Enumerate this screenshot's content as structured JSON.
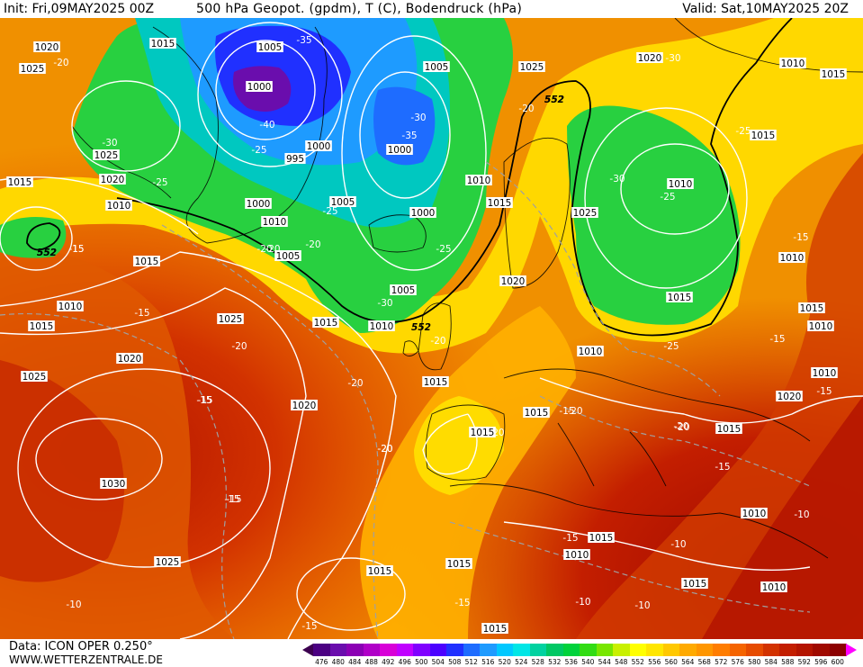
{
  "header": {
    "init": "Init: Fri,09MAY2025 00Z",
    "title": "500 hPa Geopot. (gpdm), T (C), Bodendruck (hPa)",
    "valid": "Valid: Sat,10MAY2025 20Z"
  },
  "footer": {
    "source": "Data: ICON OPER 0.250°",
    "site": "WWW.WETTERZENTRALE.DE"
  },
  "legend": {
    "values": [
      "476",
      "480",
      "484",
      "488",
      "492",
      "496",
      "500",
      "504",
      "508",
      "512",
      "516",
      "520",
      "524",
      "528",
      "532",
      "536",
      "540",
      "544",
      "548",
      "552",
      "556",
      "560",
      "564",
      "568",
      "572",
      "576",
      "580",
      "584",
      "588",
      "592",
      "596",
      "600"
    ],
    "colors": [
      "#4b0082",
      "#6a0dad",
      "#8b00b4",
      "#b000c8",
      "#d800d8",
      "#c000ff",
      "#8000ff",
      "#4b00ff",
      "#2030ff",
      "#1e6cff",
      "#1e9bff",
      "#00c8ff",
      "#00e6e6",
      "#00d2a0",
      "#00c864",
      "#00d23c",
      "#32dc14",
      "#78e600",
      "#c8f000",
      "#ffff00",
      "#ffe600",
      "#ffc800",
      "#ffaa00",
      "#ff9600",
      "#ff7d00",
      "#f56400",
      "#e64b00",
      "#d23200",
      "#c31e00",
      "#b41400",
      "#a00a00",
      "#8c0000"
    ],
    "arrow_left_color": "#3c0050",
    "arrow_right_color": "#ff00ff"
  },
  "map": {
    "isobar_labels": [
      {
        "t": "1020"
      },
      {
        "t": "1015"
      },
      {
        "t": "1025"
      },
      {
        "t": "1005"
      },
      {
        "t": "1000"
      },
      {
        "t": "1005"
      },
      {
        "t": "1025"
      },
      {
        "t": "1020"
      },
      {
        "t": "1010"
      },
      {
        "t": "1015"
      },
      {
        "t": "1025"
      },
      {
        "t": "1000"
      },
      {
        "t": "995"
      },
      {
        "t": "1000"
      },
      {
        "t": "1000"
      },
      {
        "t": "1015"
      },
      {
        "t": "1020"
      },
      {
        "t": "1010"
      },
      {
        "t": "1010"
      },
      {
        "t": "1015"
      },
      {
        "t": "1010"
      },
      {
        "t": "1005"
      },
      {
        "t": "1000"
      },
      {
        "t": "1010"
      },
      {
        "t": "1015"
      },
      {
        "t": "1025"
      },
      {
        "t": "1010"
      },
      {
        "t": "1005"
      },
      {
        "t": "1015"
      },
      {
        "t": "1010"
      },
      {
        "t": "1010"
      },
      {
        "t": "1005"
      },
      {
        "t": "1020"
      },
      {
        "t": "1015"
      },
      {
        "t": "1015"
      },
      {
        "t": "1015"
      },
      {
        "t": "1025"
      },
      {
        "t": "1015"
      },
      {
        "t": "1010"
      },
      {
        "t": "1020"
      },
      {
        "t": "1010"
      },
      {
        "t": "1015"
      },
      {
        "t": "1020"
      },
      {
        "t": "1025"
      },
      {
        "t": "1015"
      },
      {
        "t": "1015"
      },
      {
        "t": "1015"
      },
      {
        "t": "1020"
      },
      {
        "t": "1010"
      },
      {
        "t": "1015"
      },
      {
        "t": "1010"
      },
      {
        "t": "1030"
      },
      {
        "t": "1015"
      },
      {
        "t": "1015"
      },
      {
        "t": "1010"
      },
      {
        "t": "1025"
      },
      {
        "t": "1015"
      },
      {
        "t": "1010"
      },
      {
        "t": "1015"
      },
      {
        "t": "1010"
      },
      {
        "t": "1015"
      },
      {
        "t": "1020"
      },
      {
        "t": "1010"
      }
    ],
    "temp_labels": [
      {
        "t": "-20"
      },
      {
        "t": "-35"
      },
      {
        "t": "-30"
      },
      {
        "t": "-30"
      },
      {
        "t": "-40"
      },
      {
        "t": "-35"
      },
      {
        "t": "-25"
      },
      {
        "t": "-30"
      },
      {
        "t": "-25"
      },
      {
        "t": "-25"
      },
      {
        "t": "-20"
      },
      {
        "t": "-15"
      },
      {
        "t": "-25"
      },
      {
        "t": "-20"
      },
      {
        "t": "-20"
      },
      {
        "t": "-20"
      },
      {
        "t": "-30"
      },
      {
        "t": "-25"
      },
      {
        "t": "-30"
      },
      {
        "t": "-25"
      },
      {
        "t": "-15"
      },
      {
        "t": "-20"
      },
      {
        "t": "-20"
      },
      {
        "t": "-15"
      },
      {
        "t": "-15"
      },
      {
        "t": "-20"
      },
      {
        "t": "-20"
      },
      {
        "t": "-15"
      },
      {
        "t": "-20"
      },
      {
        "t": "-20"
      },
      {
        "t": "-25"
      },
      {
        "t": "-15"
      },
      {
        "t": "-20"
      },
      {
        "t": "-15"
      },
      {
        "t": "-15"
      },
      {
        "t": "-15"
      },
      {
        "t": "-10"
      },
      {
        "t": "-10"
      },
      {
        "t": "-10"
      },
      {
        "t": "-10"
      },
      {
        "t": "-10"
      },
      {
        "t": "-15"
      },
      {
        "t": "-15"
      },
      {
        "t": "-15"
      },
      {
        "t": "-20"
      },
      {
        "t": "-15"
      },
      {
        "t": "-20"
      },
      {
        "t": "-15"
      },
      {
        "t": "-15"
      }
    ],
    "geopot_labels": [
      {
        "t": "552"
      },
      {
        "t": "552"
      },
      {
        "t": "552"
      },
      {
        "t": "552"
      },
      {
        "t": "552"
      }
    ]
  }
}
